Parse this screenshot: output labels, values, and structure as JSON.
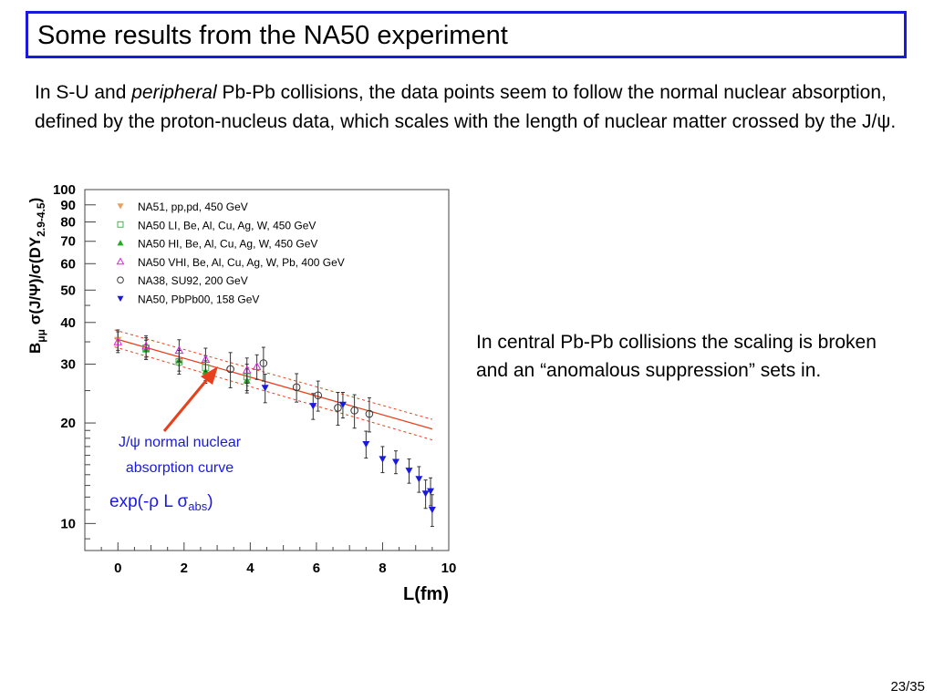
{
  "slide": {
    "title": "Some results from the NA50 experiment",
    "intro_before": "In S-U and ",
    "intro_italic": "peripheral",
    "intro_after": " Pb-Pb collisions, the data points seem to follow the normal nuclear absorption, defined by the proton-nucleus data, which scales with the length of nuclear matter crossed by the J/ψ.",
    "side_text": "In central Pb-Pb collisions the scaling is broken and an “anomalous suppression” sets in.",
    "page_number": "23/35"
  },
  "annotations": {
    "curve_label_line1": "J/ψ normal nuclear",
    "curve_label_line2": "absorption curve",
    "formula_main": "exp(-ρ L σ",
    "formula_sub": "abs",
    "formula_close": ")",
    "arrow_color": "#e8401c",
    "label_color": "#1a1adc"
  },
  "chart_data": {
    "type": "scatter",
    "xlabel": "L(fm)",
    "ylabel": "B_μμ σ(J/Ψ)/σ(DY_2.9-4.5)",
    "xlim": [
      -1,
      10
    ],
    "ylim": [
      8.3,
      100
    ],
    "y_log": true,
    "x_ticks": [
      0,
      2,
      4,
      6,
      8,
      10
    ],
    "y_ticks": [
      10,
      20,
      30,
      40,
      50,
      60,
      70,
      80,
      90,
      100
    ],
    "legend_position": "top-left",
    "series": [
      {
        "name": "NA51, pp,pd, 450 GeV",
        "marker": "triangle-down-filled",
        "color": "#e8a060",
        "x": [
          0
        ],
        "y": [
          35.5
        ],
        "err": [
          2.5
        ]
      },
      {
        "name": "NA50 LI, Be, Al, Cu, Ag, W, 450 GeV",
        "marker": "square-open",
        "color": "#4caf50",
        "x": [
          0.85,
          1.85,
          2.65,
          3.9
        ],
        "y": [
          33.5,
          30.5,
          29.3,
          27.5
        ],
        "err": [
          2.5,
          2.5,
          2.5,
          2.5
        ]
      },
      {
        "name": "NA50 HI, Be, Al, Cu, Ag, W, 450 GeV",
        "marker": "triangle-up-filled",
        "color": "#22aa22",
        "x": [
          0.85,
          1.85,
          2.65,
          3.9
        ],
        "y": [
          33.2,
          30.8,
          28.5,
          26.8
        ],
        "err": [
          2.2,
          2.2,
          2.2,
          2.2
        ]
      },
      {
        "name": "NA50 VHI, Be, Al, Cu, Ag, W, Pb, 400 GeV",
        "marker": "triangle-up-open",
        "color": "#dd22dd",
        "x": [
          0,
          0.85,
          1.85,
          2.65,
          3.9,
          4.2
        ],
        "y": [
          35.0,
          34.0,
          33.0,
          31.0,
          28.8,
          29.5
        ],
        "err": [
          2.5,
          2.5,
          2.5,
          2.5,
          2.5,
          2.5
        ]
      },
      {
        "name": "NA38, SU92, 200 GeV",
        "marker": "circle-open",
        "color": "#333333",
        "x": [
          3.4,
          4.4,
          5.4,
          6.05,
          6.65,
          7.15,
          7.6
        ],
        "y": [
          29.0,
          30.2,
          25.6,
          24.2,
          22.2,
          21.8,
          21.3
        ],
        "err": [
          3.5,
          3.5,
          2.5,
          2.5,
          2.5,
          2.5,
          2.5
        ]
      },
      {
        "name": "NA50, PbPb00, 158 GeV",
        "marker": "triangle-down-filled",
        "color": "#1a1adc",
        "x": [
          4.45,
          5.9,
          6.8,
          7.5,
          8.0,
          8.4,
          8.8,
          9.1,
          9.3,
          9.45,
          9.5
        ],
        "y": [
          25.5,
          22.5,
          22.7,
          17.3,
          15.6,
          15.3,
          14.4,
          13.6,
          12.3,
          12.5,
          11.0
        ],
        "err": [
          2.5,
          2.0,
          2.0,
          1.6,
          1.4,
          1.2,
          1.2,
          1.2,
          1.2,
          1.2,
          1.2
        ]
      }
    ],
    "fit_line": {
      "x": [
        -0.1,
        9.5
      ],
      "y": [
        35.8,
        19.2
      ],
      "color": "#e8401c",
      "style": "solid"
    },
    "fit_band": [
      {
        "x": [
          -0.1,
          9.5
        ],
        "y": [
          38.0,
          20.5
        ],
        "color": "#e8401c",
        "style": "dashed"
      },
      {
        "x": [
          -0.1,
          9.5
        ],
        "y": [
          33.8,
          17.8
        ],
        "color": "#e8401c",
        "style": "dashed"
      }
    ]
  }
}
